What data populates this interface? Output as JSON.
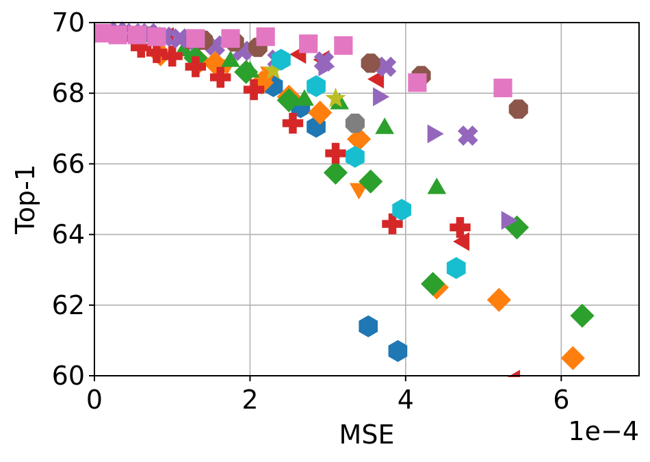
{
  "chart_data": {
    "type": "scatter",
    "xlabel": "MSE",
    "ylabel": "Top-1",
    "x_offset_label": "1e−4",
    "x_scale_factor": 0.0001,
    "xlim": [
      0,
      7
    ],
    "ylim": [
      60,
      70
    ],
    "xticks": [
      0,
      2,
      4,
      6
    ],
    "yticks": [
      60,
      62,
      64,
      66,
      68,
      70
    ],
    "grid": true,
    "legend": "none",
    "series": [
      {
        "color": "#1f77b4",
        "marker": "hexagon",
        "x": [
          2.3,
          2.65,
          2.85,
          3.52,
          3.9
        ],
        "y": [
          68.2,
          67.6,
          67.05,
          61.4,
          60.7
        ]
      },
      {
        "color": "#ff7f0e",
        "marker": "diamond",
        "x": [
          0.85,
          1.35,
          1.55,
          2.15,
          2.5,
          2.9,
          3.4,
          4.4,
          5.2,
          6.15
        ],
        "y": [
          69.1,
          68.9,
          68.85,
          68.3,
          67.9,
          67.45,
          66.7,
          62.5,
          62.15,
          60.5
        ]
      },
      {
        "color": "#ff7f0e",
        "marker": "triangle-down",
        "x": [
          1.7,
          2.25,
          3.4
        ],
        "y": [
          68.8,
          68.6,
          65.3
        ]
      },
      {
        "color": "#2ca02c",
        "marker": "triangle-up",
        "x": [
          0.7,
          1.15,
          1.75,
          2.0,
          2.7,
          3.15,
          3.73,
          4.4
        ],
        "y": [
          69.6,
          69.2,
          68.9,
          68.6,
          67.8,
          67.7,
          67.0,
          65.3
        ]
      },
      {
        "color": "#2ca02c",
        "marker": "diamond",
        "x": [
          1.3,
          1.95,
          2.5,
          3.1,
          3.55,
          4.35,
          5.43,
          6.27
        ],
        "y": [
          69.0,
          68.6,
          67.8,
          65.75,
          65.5,
          62.6,
          64.2,
          61.7
        ]
      },
      {
        "color": "#d62728",
        "marker": "plus",
        "x": [
          0.6,
          0.8,
          1.0,
          1.3,
          1.62,
          2.05,
          2.55,
          3.1,
          3.83,
          4.7
        ],
        "y": [
          69.3,
          69.15,
          69.05,
          68.75,
          68.45,
          68.1,
          67.15,
          66.3,
          64.3,
          64.2
        ]
      },
      {
        "color": "#d62728",
        "marker": "triangle-left",
        "x": [
          0.95,
          1.15,
          2.65,
          2.95,
          3.65,
          4.75,
          5.4
        ],
        "y": [
          69.6,
          69.5,
          69.1,
          68.95,
          68.4,
          63.8,
          59.9
        ]
      },
      {
        "color": "#9467bd",
        "marker": "triangle-right",
        "x": [
          2.95,
          3.65,
          4.35,
          5.3
        ],
        "y": [
          68.75,
          67.9,
          66.85,
          64.4
        ]
      },
      {
        "color": "#9467bd",
        "marker": "x",
        "x": [
          0.3,
          0.5,
          0.7,
          0.9,
          1.1,
          1.3,
          1.55,
          1.9,
          2.35,
          2.95,
          3.75,
          4.8
        ],
        "y": [
          69.75,
          69.7,
          69.7,
          69.6,
          69.55,
          69.5,
          69.35,
          69.2,
          68.95,
          68.9,
          68.75,
          66.8
        ]
      },
      {
        "color": "#8c564b",
        "marker": "octagon",
        "x": [
          1.4,
          1.8,
          2.1,
          3.55,
          4.2,
          5.45
        ],
        "y": [
          69.5,
          69.45,
          69.3,
          68.85,
          68.5,
          67.55
        ]
      },
      {
        "color": "#e377c2",
        "marker": "square",
        "x": [
          0.1,
          0.3,
          0.55,
          0.8,
          1.3,
          1.75,
          2.2,
          2.75,
          3.2,
          4.15,
          5.25
        ],
        "y": [
          69.7,
          69.65,
          69.65,
          69.6,
          69.55,
          69.55,
          69.6,
          69.4,
          69.35,
          68.3,
          68.15
        ]
      },
      {
        "color": "#7f7f7f",
        "marker": "octagon",
        "x": [
          3.35
        ],
        "y": [
          67.15
        ]
      },
      {
        "color": "#bcbd22",
        "marker": "star",
        "x": [
          2.3,
          3.1
        ],
        "y": [
          68.65,
          67.85
        ]
      },
      {
        "color": "#17becf",
        "marker": "hexagon",
        "x": [
          2.4,
          2.85,
          3.35,
          3.95,
          4.65
        ],
        "y": [
          68.95,
          68.2,
          66.2,
          64.7,
          63.05
        ]
      }
    ]
  }
}
